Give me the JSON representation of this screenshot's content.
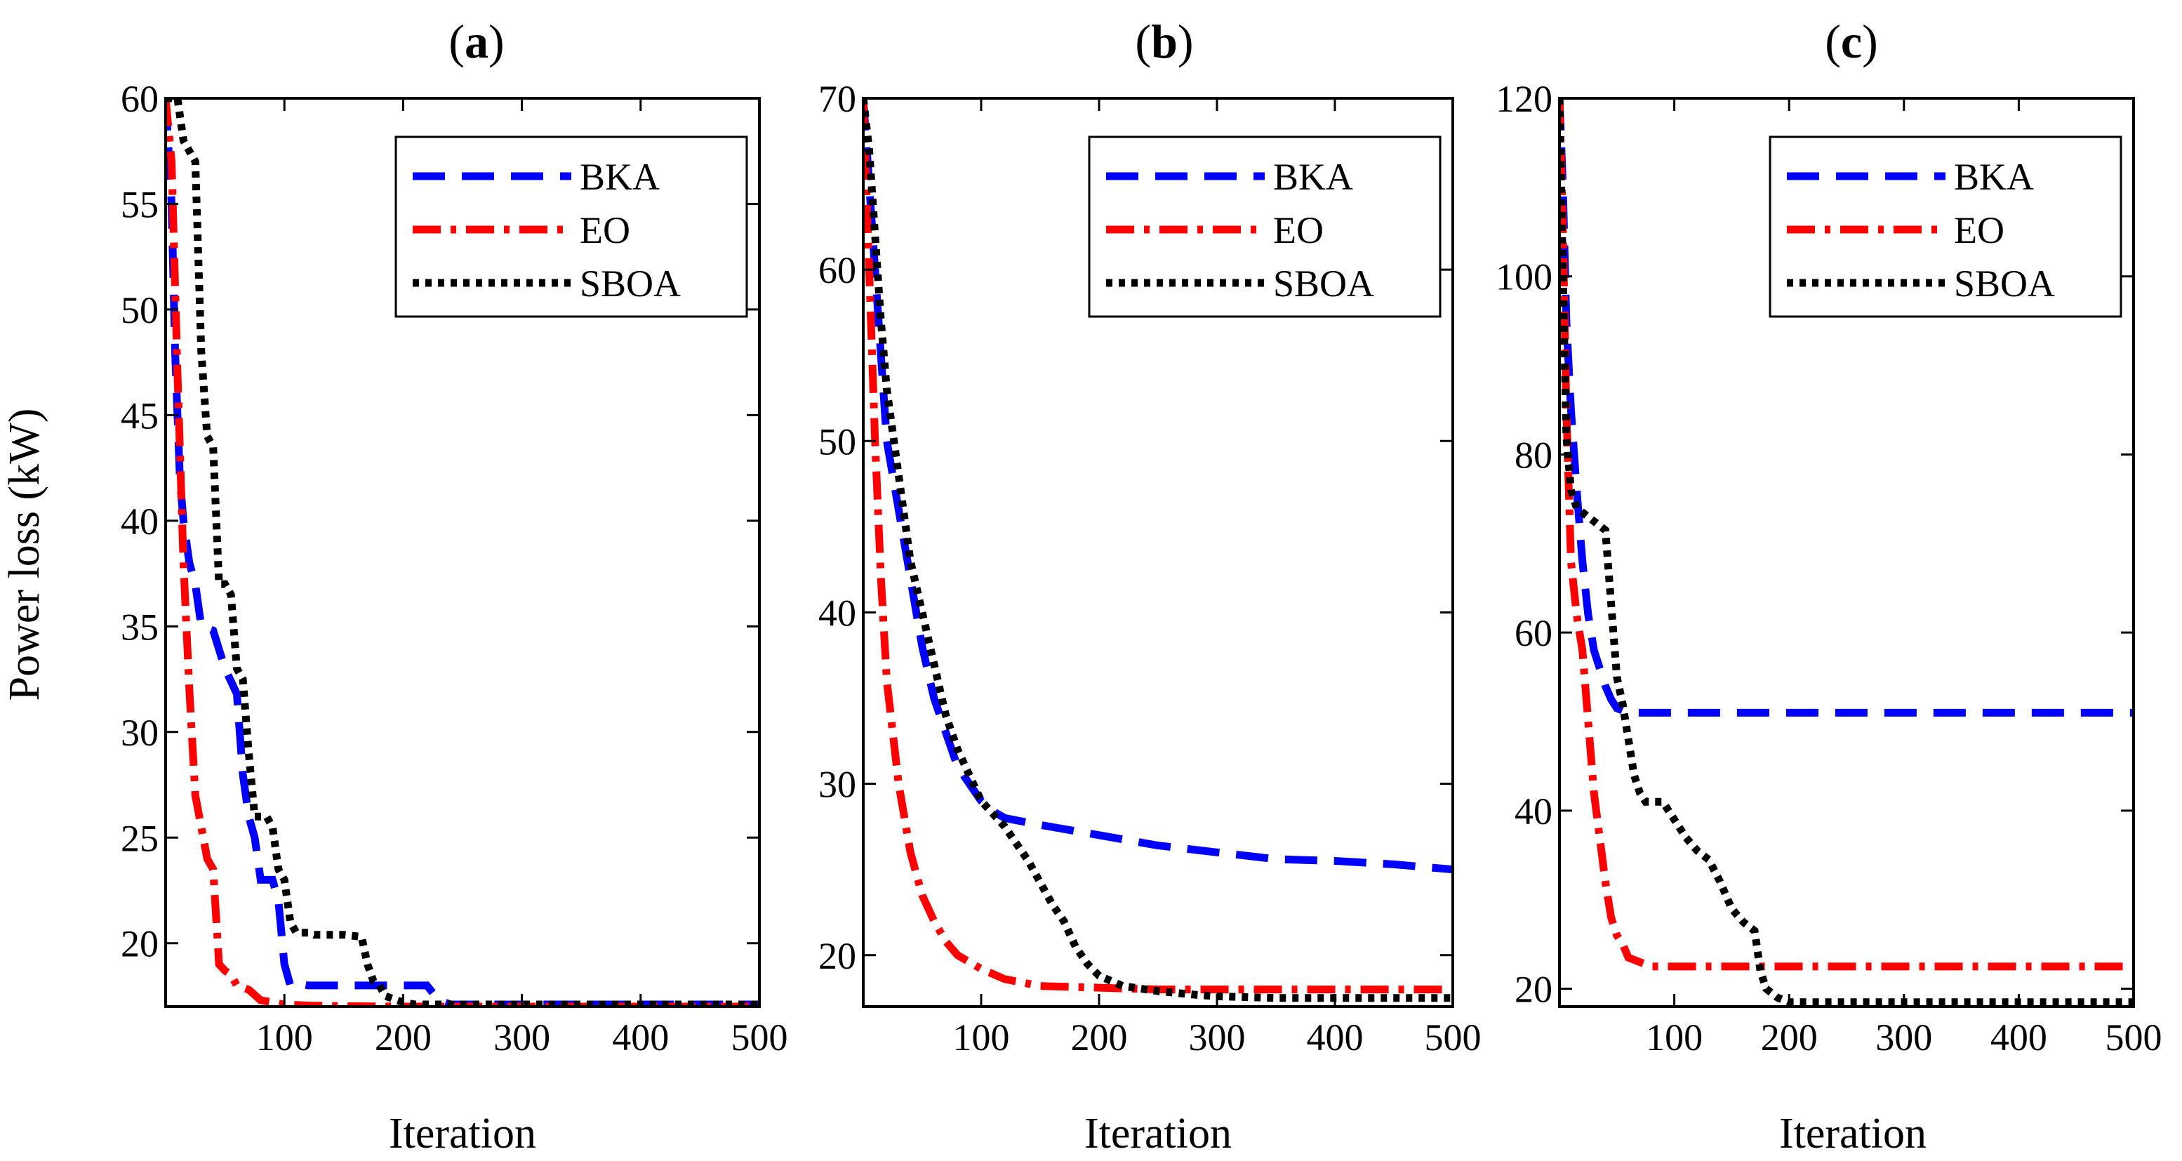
{
  "chart_data": [
    {
      "type": "line",
      "title": "(a)",
      "title_letter": "a",
      "xlabel": "Iteration",
      "ylabel": "Power loss (kW)",
      "xlim": [
        0,
        500
      ],
      "ylim": [
        17,
        60
      ],
      "xticks": [
        100,
        200,
        300,
        400,
        500
      ],
      "yticks": [
        20,
        25,
        30,
        35,
        40,
        45,
        50,
        55,
        60
      ],
      "legend_position": "top-right",
      "series": [
        {
          "name": "BKA",
          "color": "#0000ff",
          "style": "dash",
          "x": [
            0,
            5,
            8,
            12,
            15,
            20,
            25,
            30,
            40,
            50,
            60,
            65,
            70,
            75,
            80,
            85,
            90,
            95,
            100,
            105,
            110,
            120,
            150,
            200,
            220,
            230,
            240,
            300,
            400,
            500
          ],
          "y": [
            60,
            55,
            48,
            42,
            40,
            38,
            37,
            35,
            34.8,
            33,
            31.8,
            28,
            26,
            25,
            23,
            23,
            23,
            22,
            19,
            18,
            18.1,
            18,
            18,
            18,
            18,
            17.3,
            17.1,
            17.1,
            17.1,
            17.1
          ]
        },
        {
          "name": "EO",
          "color": "#ff0000",
          "style": "dashdot",
          "x": [
            0,
            5,
            10,
            15,
            20,
            25,
            30,
            35,
            40,
            45,
            50,
            55,
            60,
            70,
            80,
            90,
            100,
            120,
            150,
            200,
            300,
            400,
            500
          ],
          "y": [
            60,
            57,
            47,
            38,
            32,
            27,
            25.5,
            24,
            23.5,
            19,
            18.7,
            18.5,
            18,
            17.8,
            17.3,
            17.2,
            17.1,
            17.05,
            17.02,
            17,
            17,
            17,
            17
          ]
        },
        {
          "name": "SBOA",
          "color": "#000000",
          "style": "dot",
          "x": [
            0,
            10,
            15,
            20,
            25,
            30,
            35,
            40,
            45,
            50,
            55,
            60,
            65,
            70,
            75,
            80,
            85,
            90,
            95,
            100,
            105,
            110,
            115,
            120,
            125,
            150,
            165,
            170,
            175,
            180,
            185,
            190,
            195,
            200,
            210,
            220,
            300,
            400,
            500
          ],
          "y": [
            60,
            60,
            58,
            57.5,
            57,
            48,
            44,
            43.5,
            37,
            37,
            36.5,
            33,
            32.5,
            29,
            26,
            26,
            26,
            25.5,
            23.5,
            23,
            21,
            20.5,
            20.5,
            20.5,
            20.4,
            20.4,
            20.3,
            19,
            18.2,
            18,
            17.5,
            17.4,
            17.3,
            17.2,
            17.1,
            17.1,
            17.1,
            17.1,
            17.1
          ]
        }
      ]
    },
    {
      "type": "line",
      "title": "(b)",
      "title_letter": "b",
      "xlabel": "Iteration",
      "ylabel": "",
      "xlim": [
        0,
        500
      ],
      "ylim": [
        17,
        70
      ],
      "xticks": [
        100,
        200,
        300,
        400,
        500
      ],
      "yticks": [
        20,
        30,
        40,
        50,
        60,
        70
      ],
      "legend_position": "top-right",
      "series": [
        {
          "name": "BKA",
          "color": "#0000ff",
          "style": "dash",
          "x": [
            0,
            5,
            10,
            15,
            20,
            30,
            40,
            50,
            60,
            70,
            80,
            90,
            100,
            110,
            120,
            150,
            200,
            250,
            300,
            350,
            400,
            450,
            500
          ],
          "y": [
            70,
            65,
            60,
            55,
            50,
            46,
            42,
            38,
            35,
            33,
            31,
            30,
            29,
            28.4,
            28,
            27.6,
            27,
            26.4,
            26,
            25.6,
            25.5,
            25.3,
            25
          ]
        },
        {
          "name": "EO",
          "color": "#ff0000",
          "style": "dashdot",
          "x": [
            0,
            5,
            10,
            15,
            20,
            30,
            40,
            50,
            60,
            70,
            80,
            100,
            120,
            150,
            200,
            250,
            300,
            400,
            500
          ],
          "y": [
            70,
            60,
            50,
            42,
            36,
            30,
            26,
            23.5,
            22,
            20.8,
            20,
            19.2,
            18.6,
            18.2,
            18.1,
            18,
            18,
            18,
            18
          ]
        },
        {
          "name": "SBOA",
          "color": "#000000",
          "style": "dot",
          "x": [
            0,
            5,
            10,
            15,
            20,
            30,
            40,
            50,
            60,
            70,
            80,
            90,
            100,
            120,
            140,
            160,
            170,
            180,
            190,
            200,
            220,
            250,
            280,
            300,
            350,
            400,
            450,
            500
          ],
          "y": [
            70,
            67,
            62,
            57,
            53,
            48,
            43,
            40,
            37,
            34,
            32,
            30.5,
            29,
            27.5,
            25.5,
            23,
            22,
            20.5,
            19.5,
            18.8,
            18.2,
            17.9,
            17.7,
            17.6,
            17.5,
            17.5,
            17.5,
            17.5
          ]
        }
      ]
    },
    {
      "type": "line",
      "title": "(c)",
      "title_letter": "c",
      "xlabel": "Iteration",
      "ylabel": "",
      "xlim": [
        0,
        500
      ],
      "ylim": [
        18,
        120
      ],
      "xticks": [
        100,
        200,
        300,
        400,
        500
      ],
      "yticks": [
        20,
        40,
        60,
        80,
        100,
        120
      ],
      "legend_position": "top-right",
      "series": [
        {
          "name": "BKA",
          "color": "#0000ff",
          "style": "dash",
          "x": [
            0,
            3,
            6,
            10,
            15,
            20,
            25,
            30,
            35,
            40,
            45,
            50,
            60,
            100,
            200,
            300,
            400,
            500
          ],
          "y": [
            120,
            110,
            95,
            85,
            76,
            68,
            62,
            58,
            56,
            54,
            52.5,
            51.5,
            51,
            51,
            51,
            51,
            51,
            51
          ]
        },
        {
          "name": "EO",
          "color": "#ff0000",
          "style": "dashdot",
          "x": [
            0,
            3,
            6,
            10,
            15,
            20,
            25,
            30,
            35,
            40,
            45,
            50,
            55,
            60,
            70,
            80,
            100,
            200,
            300,
            400,
            500
          ],
          "y": [
            120,
            105,
            85,
            68,
            62,
            58,
            50,
            42,
            37,
            32,
            28,
            26,
            25,
            23.5,
            23,
            22.5,
            22.5,
            22.5,
            22.5,
            22.5,
            22.5
          ]
        },
        {
          "name": "SBOA",
          "color": "#000000",
          "style": "dot",
          "x": [
            0,
            3,
            6,
            10,
            15,
            20,
            30,
            40,
            50,
            55,
            60,
            65,
            70,
            75,
            80,
            90,
            100,
            110,
            120,
            130,
            140,
            150,
            160,
            170,
            175,
            180,
            190,
            200,
            250,
            300,
            400,
            500
          ],
          "y": [
            120,
            100,
            82,
            76,
            74,
            73.5,
            72.5,
            71.5,
            55,
            52,
            48,
            44,
            42,
            41,
            41,
            41,
            39,
            37,
            35.5,
            34.5,
            32,
            29,
            27.5,
            26.5,
            22,
            20,
            19,
            18.5,
            18.5,
            18.5,
            18.5,
            18.5
          ]
        }
      ]
    }
  ]
}
